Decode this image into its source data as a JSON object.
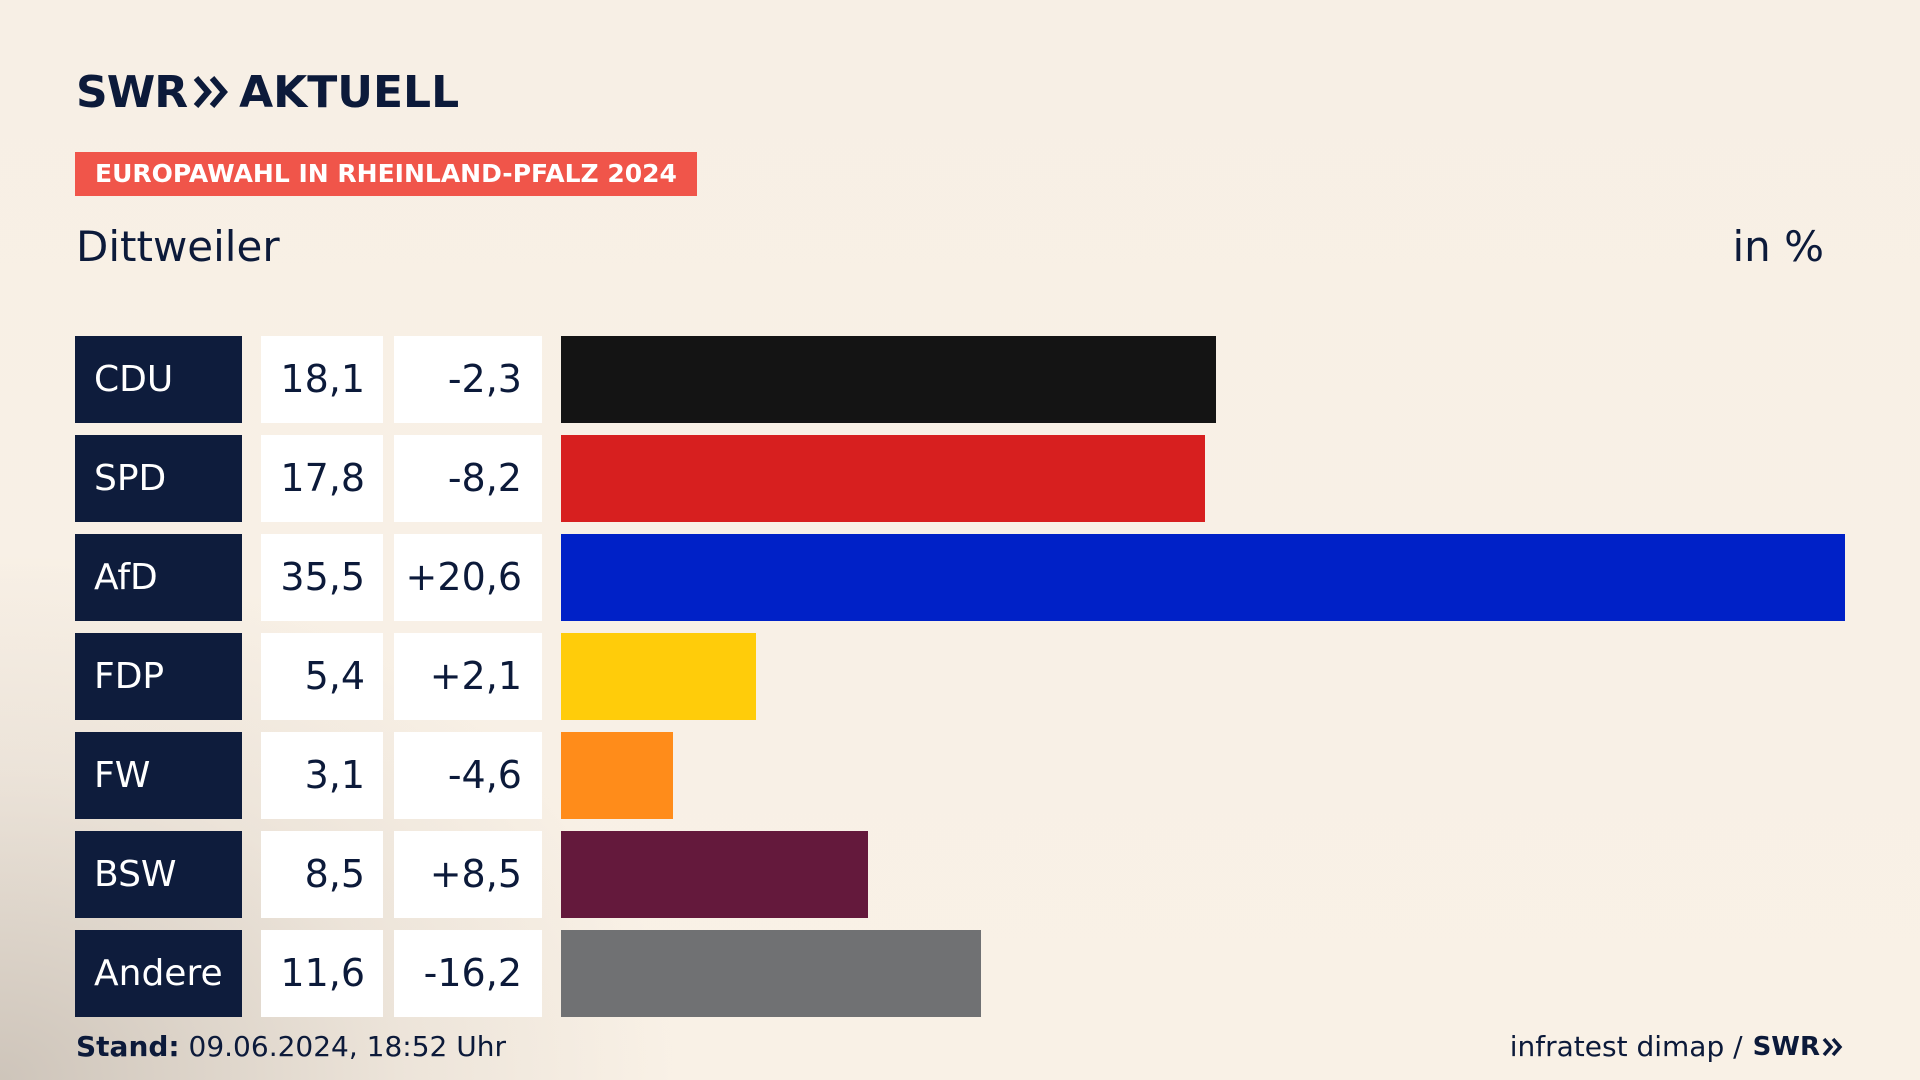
{
  "header": {
    "brand": "SWR",
    "product": "AKTUELL",
    "badge": "EUROPAWAHL IN RHEINLAND-PFALZ 2024",
    "region": "Dittweiler",
    "unit": "in %"
  },
  "footer": {
    "stand_label": "Stand:",
    "stand_value": "09.06.2024, 18:52 Uhr",
    "source": "infratest dimap /",
    "brand": "SWR"
  },
  "colors": {
    "badge": "#f0554a",
    "party_cell": "#0e1c3c",
    "text": "#0c1a3a"
  },
  "chart_data": {
    "type": "bar",
    "orientation": "horizontal",
    "categories": [
      "CDU",
      "SPD",
      "AfD",
      "FDP",
      "FW",
      "BSW",
      "Andere"
    ],
    "values": [
      18.1,
      17.8,
      35.5,
      5.4,
      3.1,
      8.5,
      11.6
    ],
    "value_labels": [
      "18,1",
      "17,8",
      "35,5",
      "5,4",
      "3,1",
      "8,5",
      "11,6"
    ],
    "diff": [
      -2.3,
      -8.2,
      20.6,
      2.1,
      -4.6,
      8.5,
      -16.2
    ],
    "diff_labels": [
      "-2,3",
      "-8,2",
      "+20,6",
      "+2,1",
      "-4,6",
      "+8,5",
      "-16,2"
    ],
    "bar_colors": [
      "#141414",
      "#d71f1f",
      "#0021c7",
      "#ffcc0a",
      "#ff8c1a",
      "#64193c",
      "#707173"
    ],
    "xlim": [
      0,
      35.5
    ],
    "grid": false,
    "legend": "none"
  }
}
